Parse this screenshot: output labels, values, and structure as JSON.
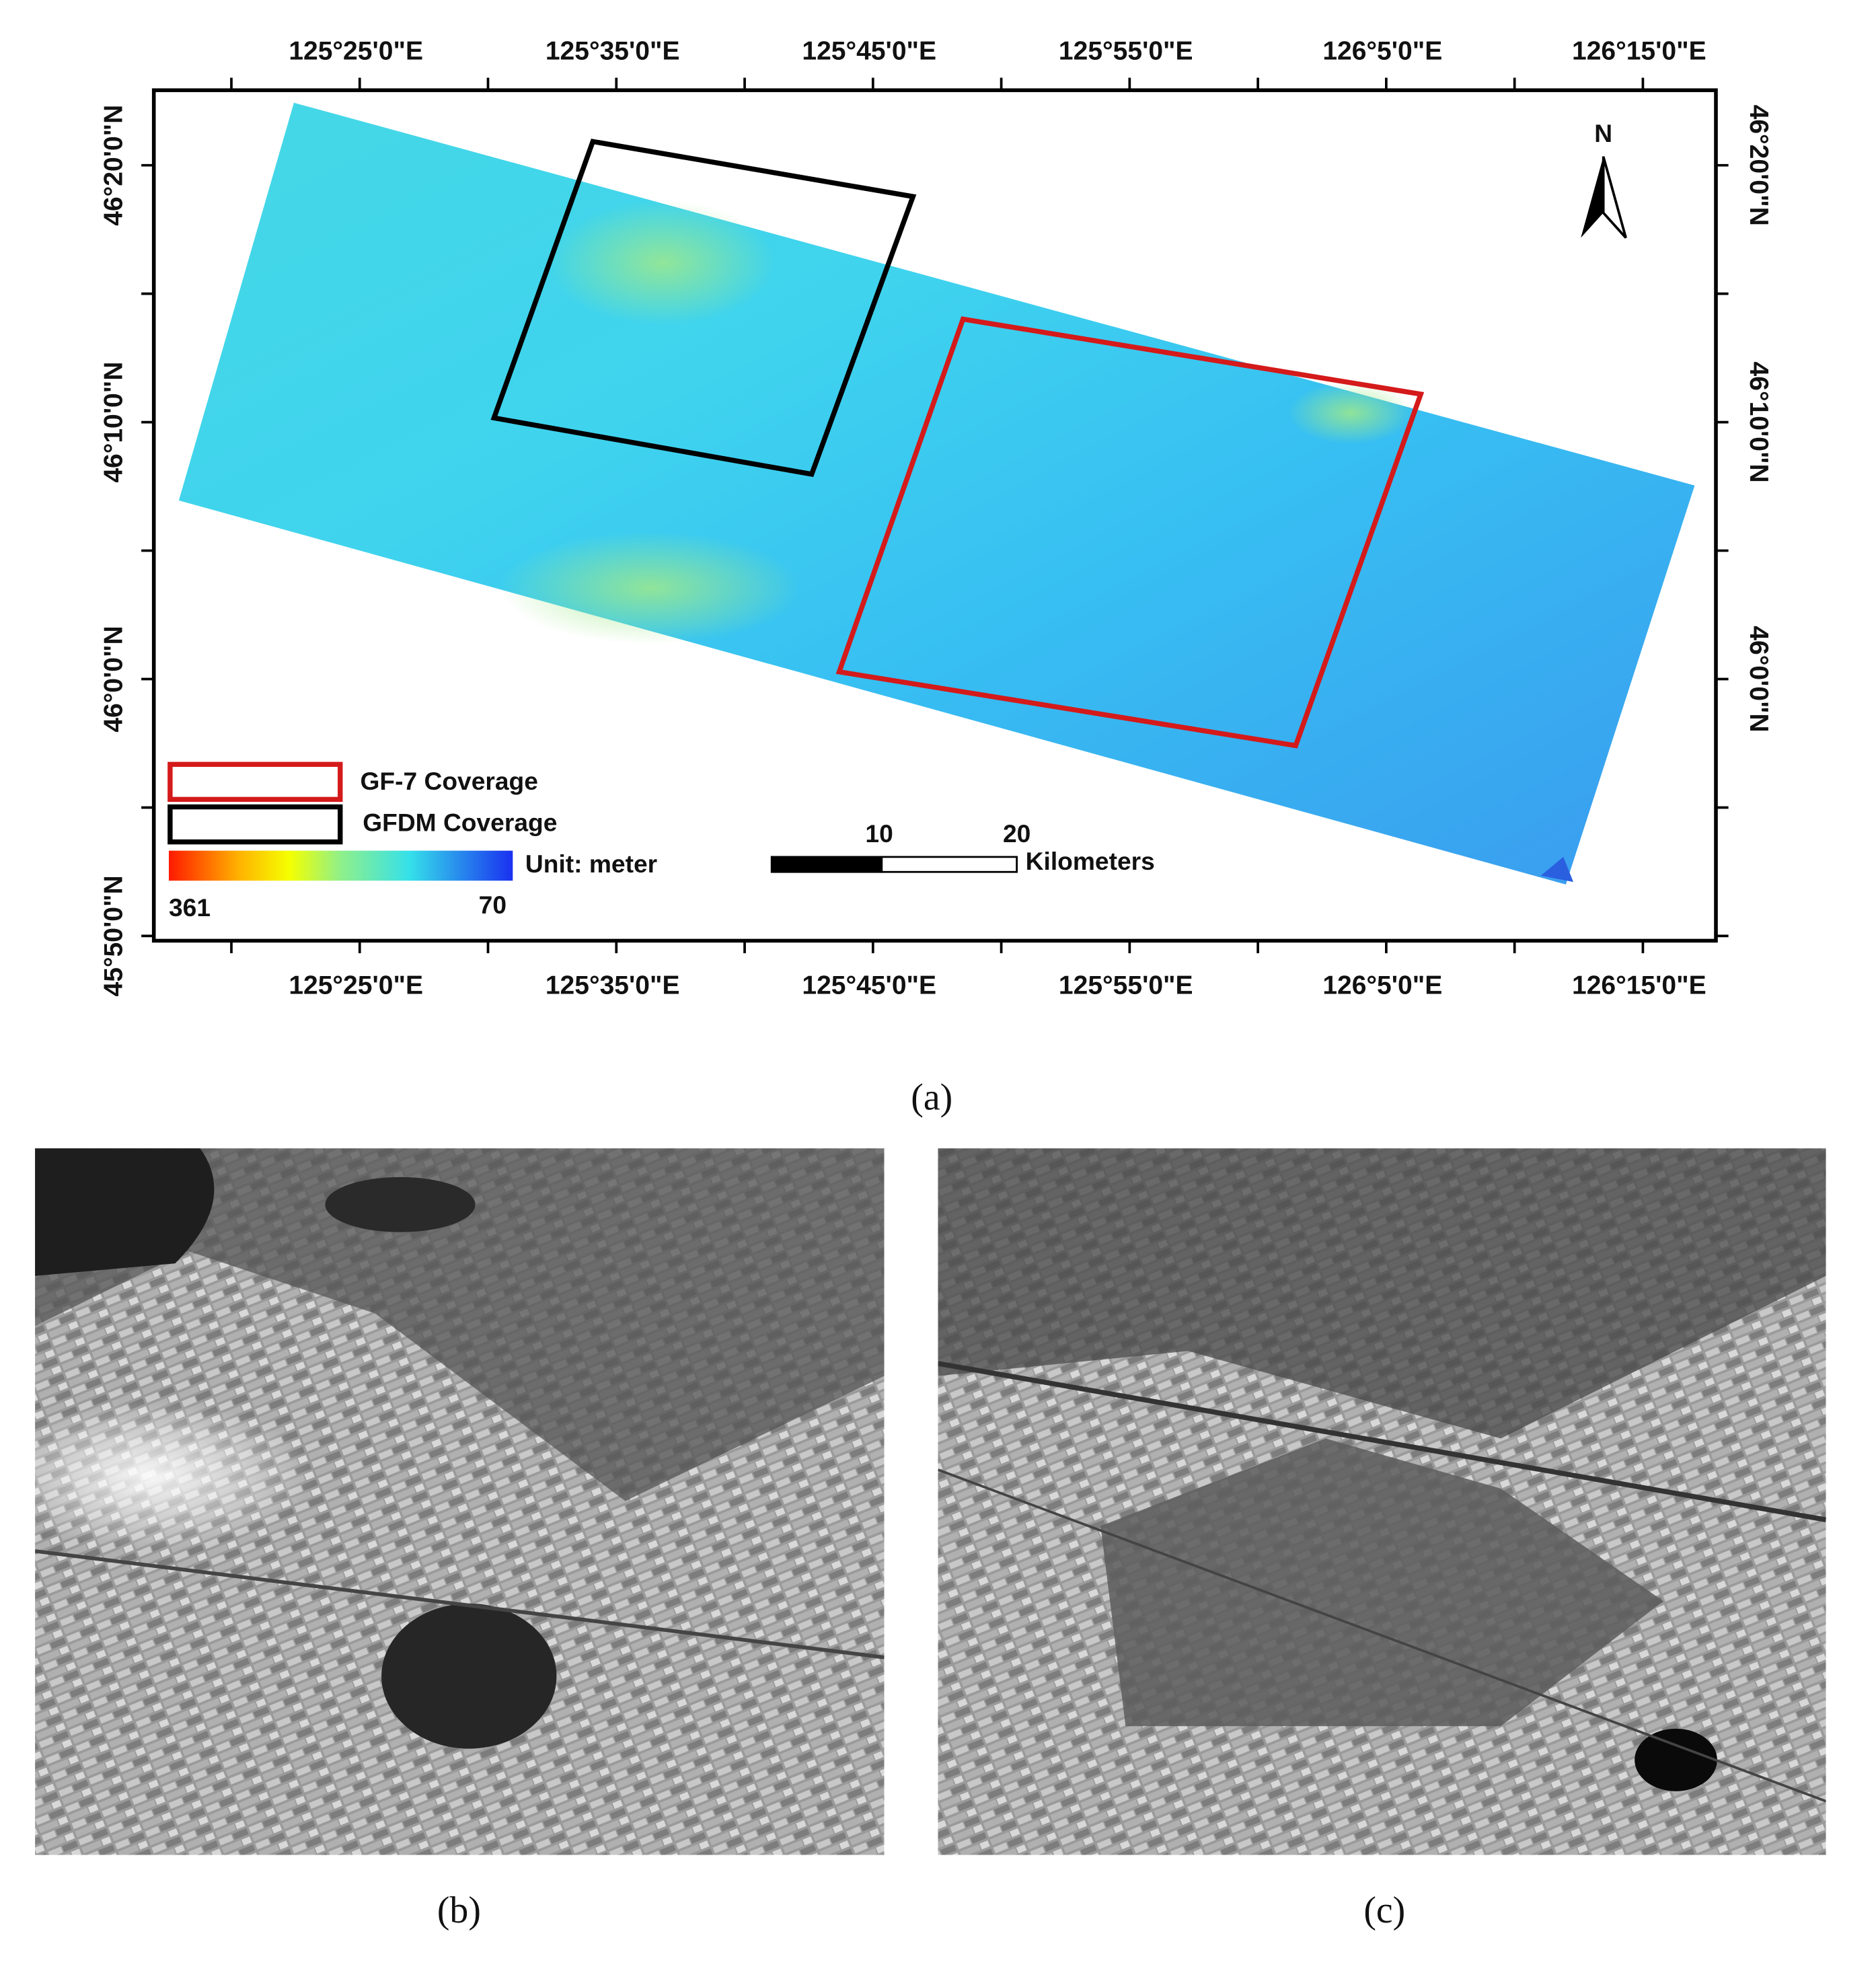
{
  "map": {
    "longitude_labels": [
      "125°25'0\"E",
      "125°35'0\"E",
      "125°45'0\"E",
      "125°55'0\"E",
      "126°5'0\"E",
      "126°15'0\"E"
    ],
    "latitude_labels": [
      "46°20'0\"N",
      "46°10'0\"N",
      "46°0'0\"N",
      "45°50'0\"N"
    ],
    "north": "N",
    "legend": {
      "gf7": "GF-7 Coverage",
      "gfdm": "GFDM Coverage",
      "unit": "Unit: meter",
      "max": 361,
      "min": 70
    },
    "scale_bar": {
      "ticks": [
        10,
        20
      ],
      "unit": "Kilometers"
    },
    "caption": "(a)"
  },
  "panels": [
    {
      "caption": "(b)"
    },
    {
      "caption": "(c)"
    }
  ]
}
